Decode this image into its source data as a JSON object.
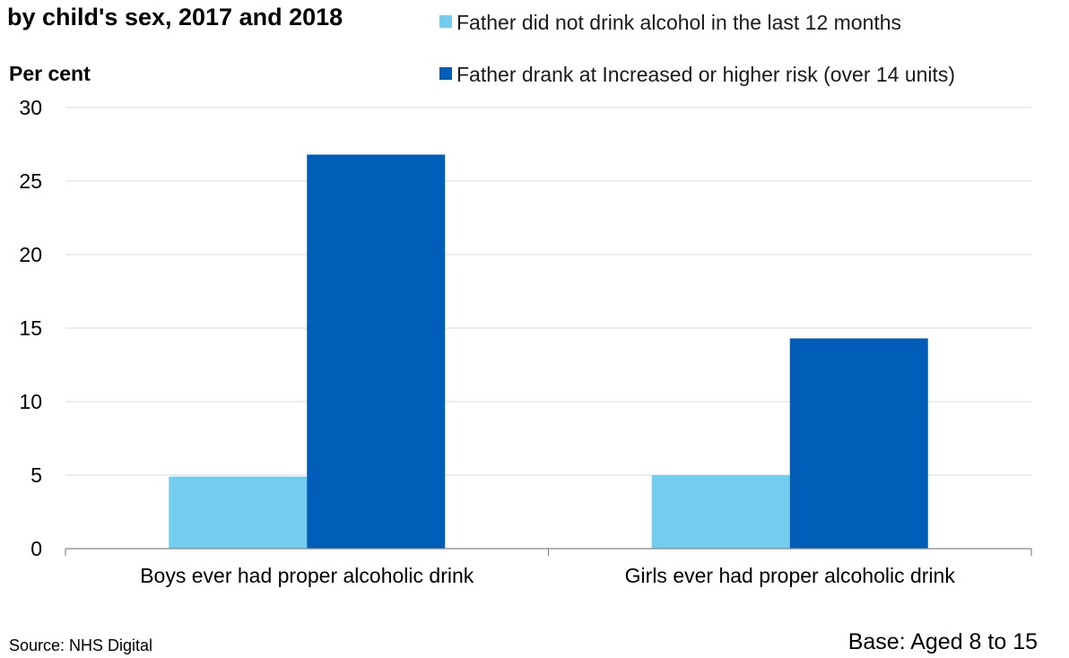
{
  "chart_data": {
    "type": "bar",
    "title": "by child's sex, 2017 and 2018",
    "ylabel": "Per cent",
    "xlabel": "",
    "categories": [
      "Boys ever had proper alcoholic drink",
      "Girls ever had proper alcoholic drink"
    ],
    "series": [
      {
        "name": "Father did not drink alcohol in the last 12 months",
        "color": "#73cdee",
        "values": [
          4.9,
          5.0
        ]
      },
      {
        "name": "Father drank at Increased or higher risk (over 14 units)",
        "color": "#005eb8",
        "values": [
          26.8,
          14.3
        ]
      }
    ],
    "ylim": [
      0,
      30
    ],
    "yticks": [
      0,
      5,
      10,
      15,
      20,
      25,
      30
    ],
    "grid": true,
    "legend_position": "top-right"
  },
  "footer": {
    "source": "Source: NHS Digital",
    "base": "Base: Aged 8 to 15"
  }
}
